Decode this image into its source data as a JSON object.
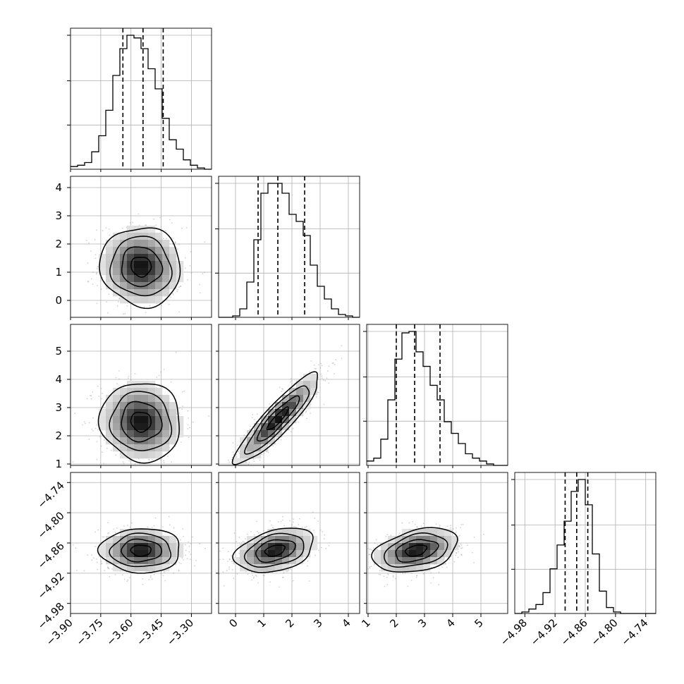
{
  "chart_data": {
    "type": "corner",
    "title": "",
    "grid": true,
    "parameters": [
      {
        "range": [
          -3.9,
          -3.2
        ],
        "ticks": [
          -3.9,
          -3.75,
          -3.6,
          -3.45,
          -3.3
        ],
        "tick_labels": [
          "−3.90",
          "−3.75",
          "−3.60",
          "−3.45",
          "−3.30"
        ],
        "quantiles": [
          -3.64,
          -3.54,
          -3.44
        ],
        "mode": -3.55
      },
      {
        "range": [
          -0.6,
          4.4
        ],
        "ticks": [
          0,
          1,
          2,
          3,
          4
        ],
        "tick_labels": [
          "0",
          "1",
          "2",
          "3",
          "4"
        ],
        "quantiles": [
          0.8,
          1.5,
          2.45
        ],
        "mode": 1.0
      },
      {
        "range": [
          0.95,
          5.95
        ],
        "ticks": [
          1,
          2,
          3,
          4,
          5
        ],
        "tick_labels": [
          "1",
          "2",
          "3",
          "4",
          "5"
        ],
        "quantiles": [
          2.0,
          2.65,
          3.55
        ],
        "mode": 2.4
      },
      {
        "range": [
          -5.0,
          -4.72
        ],
        "ticks": [
          -4.98,
          -4.92,
          -4.86,
          -4.8,
          -4.74
        ],
        "tick_labels": [
          "−4.98",
          "−4.92",
          "−4.86",
          "−4.80",
          "−4.74"
        ],
        "quantiles": [
          -4.9,
          -4.877,
          -4.855
        ],
        "mode": -4.875
      }
    ],
    "histograms": [
      {
        "bin_edges": [
          -3.9,
          -3.865,
          -3.83,
          -3.795,
          -3.76,
          -3.725,
          -3.69,
          -3.655,
          -3.62,
          -3.585,
          -3.55,
          -3.515,
          -3.48,
          -3.445,
          -3.41,
          -3.375,
          -3.34,
          -3.305,
          -3.27,
          -3.235,
          -3.2
        ],
        "counts": [
          2,
          3,
          5,
          13,
          25,
          44,
          70,
          90,
          100,
          98,
          90,
          75,
          60,
          38,
          22,
          15,
          7,
          3,
          1,
          0
        ]
      },
      {
        "bin_edges": [
          -0.6,
          -0.35,
          -0.1,
          0.15,
          0.4,
          0.65,
          0.9,
          1.15,
          1.4,
          1.65,
          1.9,
          2.15,
          2.4,
          2.65,
          2.9,
          3.15,
          3.4,
          3.65,
          3.9,
          4.15,
          4.4
        ],
        "counts": [
          0,
          0,
          1,
          6,
          25,
          55,
          88,
          95,
          95,
          88,
          73,
          68,
          58,
          37,
          22,
          13,
          6,
          2,
          1,
          0
        ]
      },
      {
        "bin_edges": [
          0.95,
          1.2,
          1.45,
          1.7,
          1.95,
          2.2,
          2.45,
          2.7,
          2.95,
          3.2,
          3.45,
          3.7,
          3.95,
          4.2,
          4.45,
          4.7,
          4.95,
          5.2,
          5.45,
          5.7,
          5.95
        ],
        "counts": [
          3,
          5,
          18,
          45,
          73,
          91,
          92,
          78,
          68,
          55,
          45,
          30,
          22,
          15,
          8,
          5,
          3,
          1,
          0,
          0
        ]
      },
      {
        "bin_edges": [
          -5.0,
          -4.986,
          -4.972,
          -4.958,
          -4.944,
          -4.93,
          -4.916,
          -4.902,
          -4.888,
          -4.874,
          -4.86,
          -4.846,
          -4.832,
          -4.818,
          -4.804,
          -4.79,
          -4.776,
          -4.762,
          -4.748,
          -4.734,
          -4.72
        ],
        "counts": [
          0,
          1,
          3,
          6,
          14,
          30,
          46,
          62,
          82,
          90,
          73,
          40,
          15,
          4,
          1,
          0,
          0,
          0,
          0,
          0
        ]
      }
    ],
    "pairs": [
      {
        "row": 1,
        "col": 0,
        "center": [
          -3.55,
          1.2
        ],
        "spread": [
          0.1,
          0.7
        ],
        "corr": -0.05
      },
      {
        "row": 2,
        "col": 0,
        "center": [
          -3.55,
          2.5
        ],
        "spread": [
          0.1,
          0.7
        ],
        "corr": -0.05
      },
      {
        "row": 2,
        "col": 1,
        "center": [
          1.5,
          2.6
        ],
        "spread": [
          0.75,
          0.8
        ],
        "corr": 0.9
      },
      {
        "row": 3,
        "col": 0,
        "center": [
          -3.55,
          -4.875
        ],
        "spread": [
          0.1,
          0.022
        ],
        "corr": 0.0
      },
      {
        "row": 3,
        "col": 1,
        "center": [
          1.4,
          -4.875
        ],
        "spread": [
          0.7,
          0.022
        ],
        "corr": 0.35
      },
      {
        "row": 3,
        "col": 2,
        "center": [
          2.7,
          -4.875
        ],
        "spread": [
          0.75,
          0.022
        ],
        "corr": 0.35
      }
    ],
    "contour_levels_sigma": [
      0.5,
      1.0,
      1.5,
      2.0
    ]
  }
}
